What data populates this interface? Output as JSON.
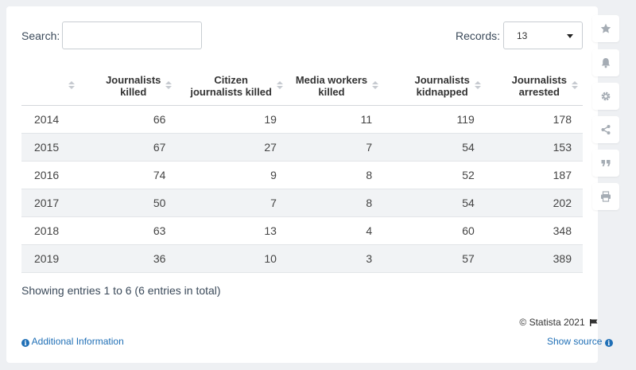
{
  "search": {
    "label": "Search:",
    "value": "",
    "placeholder": ""
  },
  "records": {
    "label": "Records:",
    "value": "13"
  },
  "table": {
    "columns": [
      "",
      "Journalists killed",
      "Citizen journalists killed",
      "Media workers killed",
      "Journalists kidnapped",
      "Journalists arrested"
    ],
    "column_lines": [
      [
        "",
        ""
      ],
      [
        "Journalists",
        "killed"
      ],
      [
        "Citizen",
        "journalists killed"
      ],
      [
        "Media workers",
        "killed"
      ],
      [
        "Journalists",
        "kidnapped"
      ],
      [
        "Journalists",
        "arrested"
      ]
    ],
    "rows": [
      [
        "2014",
        "66",
        "19",
        "11",
        "119",
        "178"
      ],
      [
        "2015",
        "67",
        "27",
        "7",
        "54",
        "153"
      ],
      [
        "2016",
        "74",
        "9",
        "8",
        "52",
        "187"
      ],
      [
        "2017",
        "50",
        "7",
        "8",
        "54",
        "202"
      ],
      [
        "2018",
        "63",
        "13",
        "4",
        "60",
        "348"
      ],
      [
        "2019",
        "36",
        "10",
        "3",
        "57",
        "389"
      ]
    ]
  },
  "footer": {
    "entries_info": "Showing entries 1 to 6 (6 entries in total)",
    "copyright": "© Statista 2021",
    "additional_info": "Additional Information",
    "show_source": "Show source"
  },
  "sidebar_icons": [
    "star-icon",
    "bell-icon",
    "gear-icon",
    "share-icon",
    "quote-icon",
    "print-icon"
  ],
  "colors": {
    "link": "#1f6fb6",
    "stripe": "#f1f3f5",
    "background": "#eef0f3"
  }
}
